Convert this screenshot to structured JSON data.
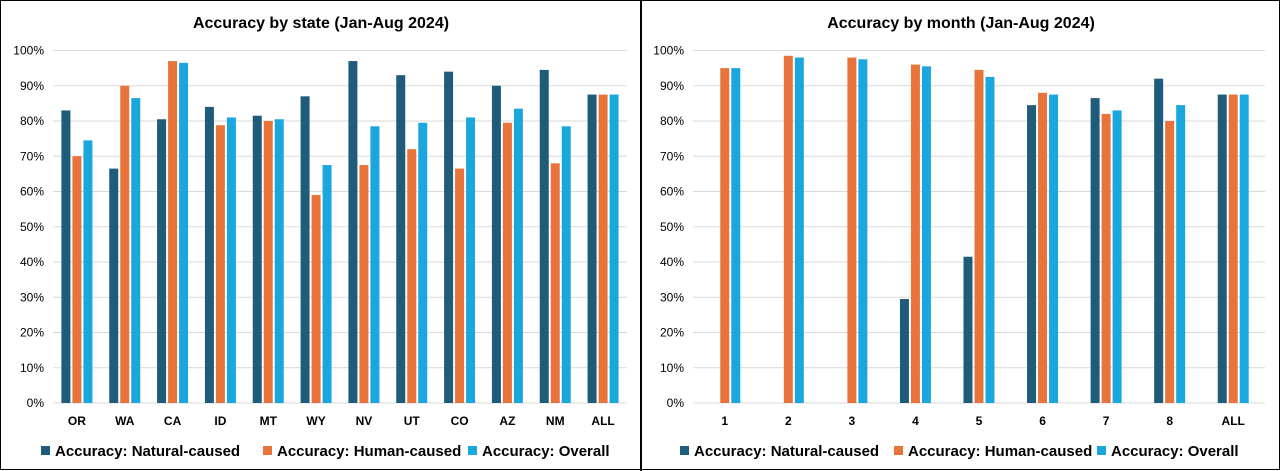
{
  "colors": {
    "natural": "#1F5C7A",
    "human": "#E8743B",
    "overall": "#1AA7DE",
    "grid": "#D9D9D9",
    "divider": "#000000"
  },
  "chart_data": [
    {
      "type": "bar",
      "title": "Accuracy by state (Jan-Aug 2024)",
      "xlabel": "",
      "ylabel": "",
      "ylim": [
        0,
        100
      ],
      "yticks": [
        "0%",
        "10%",
        "20%",
        "30%",
        "40%",
        "50%",
        "60%",
        "70%",
        "80%",
        "90%",
        "100%"
      ],
      "grid": true,
      "legend_position": "bottom",
      "categories": [
        "OR",
        "WA",
        "CA",
        "ID",
        "MT",
        "WY",
        "NV",
        "UT",
        "CO",
        "AZ",
        "NM",
        "ALL"
      ],
      "series": [
        {
          "name": "Accuracy: Natural-caused",
          "values": [
            83,
            66.5,
            80.5,
            84,
            81.5,
            87,
            97,
            93,
            94,
            90,
            94.5,
            87.5
          ]
        },
        {
          "name": "Accuracy: Human-caused",
          "values": [
            70,
            90,
            97,
            null,
            80,
            59,
            67.5,
            72,
            66.5,
            79.5,
            68,
            87.5
          ]
        },
        {
          "name": "Accuracy: Overall",
          "values": [
            74.5,
            86.5,
            96.5,
            81,
            80.5,
            67.5,
            78.5,
            79.5,
            81,
            83.5,
            78.5,
            87.5
          ]
        }
      ]
    },
    {
      "type": "bar",
      "title": "Accuracy by month (Jan-Aug 2024)",
      "xlabel": "",
      "ylabel": "",
      "ylim": [
        0,
        100
      ],
      "yticks": [
        "0%",
        "10%",
        "20%",
        "30%",
        "40%",
        "50%",
        "60%",
        "70%",
        "80%",
        "90%",
        "100%"
      ],
      "grid": true,
      "legend_position": "bottom",
      "categories": [
        "1",
        "2",
        "3",
        "4",
        "5",
        "6",
        "7",
        "8",
        "ALL"
      ],
      "series": [
        {
          "name": "Accuracy: Natural-caused",
          "values": [
            null,
            null,
            null,
            29.5,
            41.5,
            84.5,
            86.5,
            92,
            87.5
          ]
        },
        {
          "name": "Accuracy: Human-caused",
          "values": [
            95,
            98.5,
            98,
            96,
            94.5,
            88,
            82,
            80,
            87.5
          ]
        },
        {
          "name": "Accuracy: Overall",
          "values": [
            95,
            98,
            97.5,
            95.5,
            92.5,
            87.5,
            83,
            84.5,
            87.5
          ]
        }
      ]
    }
  ]
}
